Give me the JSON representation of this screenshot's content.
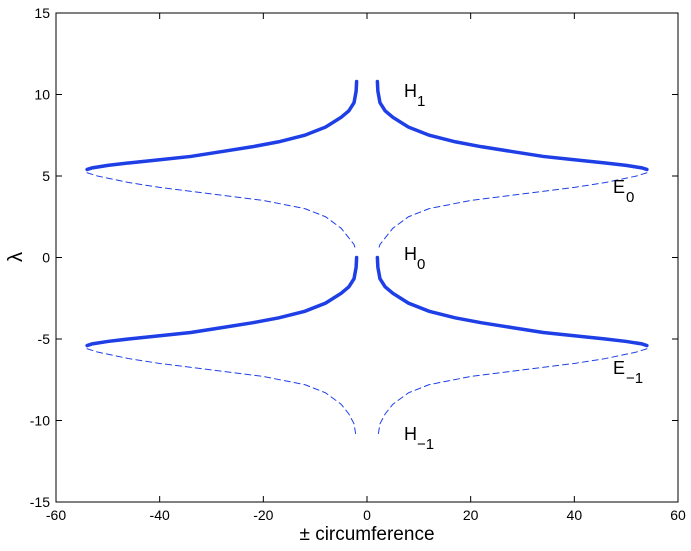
{
  "chart_data": {
    "type": "line",
    "xlabel": "± circumference",
    "ylabel": "λ",
    "xlim": [
      -60,
      60
    ],
    "ylim": [
      -15,
      15
    ],
    "xticks": [
      -60,
      -40,
      -20,
      0,
      20,
      40,
      60
    ],
    "yticks": [
      -15,
      -10,
      -5,
      0,
      5,
      10,
      15
    ],
    "color": "#1f3fe6",
    "annotations": [
      {
        "text": "H",
        "sub": "1"
      },
      {
        "text": "E",
        "sub": "0"
      },
      {
        "text": "H",
        "sub": "0"
      },
      {
        "text": "E",
        "sub": "−1"
      },
      {
        "text": "H",
        "sub": "−1"
      }
    ],
    "series": [
      {
        "style": "solid",
        "x": [
          2,
          2.1,
          2.5,
          3.5,
          5,
          8,
          12,
          17,
          22,
          28,
          34,
          40,
          46,
          50,
          53,
          54
        ],
        "y": [
          10.8,
          10.2,
          9.5,
          9,
          8.6,
          8,
          7.5,
          7.1,
          6.8,
          6.5,
          6.2,
          6,
          5.8,
          5.65,
          5.5,
          5.4
        ]
      },
      {
        "style": "solid",
        "x": [
          -2,
          -2.1,
          -2.5,
          -3.5,
          -5,
          -8,
          -12,
          -17,
          -22,
          -28,
          -34,
          -40,
          -46,
          -50,
          -53,
          -54
        ],
        "y": [
          10.8,
          10.2,
          9.5,
          9,
          8.6,
          8,
          7.5,
          7.1,
          6.8,
          6.5,
          6.2,
          6,
          5.8,
          5.65,
          5.5,
          5.4
        ]
      },
      {
        "style": "dashed",
        "x": [
          54,
          52,
          46,
          40,
          30,
          20,
          12,
          8,
          5,
          3.5,
          2.5,
          2.2
        ],
        "y": [
          5.2,
          5,
          4.6,
          4.3,
          3.9,
          3.5,
          3,
          2.5,
          1.8,
          1.2,
          0.8,
          0.5
        ]
      },
      {
        "style": "dashed",
        "x": [
          -54,
          -52,
          -46,
          -40,
          -30,
          -20,
          -12,
          -8,
          -5,
          -3.5,
          -2.5,
          -2.2
        ],
        "y": [
          5.2,
          5,
          4.6,
          4.3,
          3.9,
          3.5,
          3,
          2.5,
          1.8,
          1.2,
          0.8,
          0.5
        ]
      },
      {
        "style": "solid",
        "x": [
          2,
          2.1,
          2.5,
          3.5,
          5,
          8,
          12,
          17,
          22,
          28,
          34,
          40,
          46,
          50,
          53,
          54
        ],
        "y": [
          0,
          -0.6,
          -1.3,
          -1.8,
          -2.2,
          -2.8,
          -3.3,
          -3.7,
          -4,
          -4.3,
          -4.6,
          -4.8,
          -5,
          -5.15,
          -5.3,
          -5.4
        ]
      },
      {
        "style": "solid",
        "x": [
          -2,
          -2.1,
          -2.5,
          -3.5,
          -5,
          -8,
          -12,
          -17,
          -22,
          -28,
          -34,
          -40,
          -46,
          -50,
          -53,
          -54
        ],
        "y": [
          0,
          -0.6,
          -1.3,
          -1.8,
          -2.2,
          -2.8,
          -3.3,
          -3.7,
          -4,
          -4.3,
          -4.6,
          -4.8,
          -5,
          -5.15,
          -5.3,
          -5.4
        ]
      },
      {
        "style": "dashed",
        "x": [
          54,
          52,
          46,
          40,
          30,
          20,
          12,
          8,
          5,
          3.5,
          2.5,
          2.2
        ],
        "y": [
          -5.6,
          -5.8,
          -6.2,
          -6.5,
          -6.9,
          -7.3,
          -7.8,
          -8.3,
          -9,
          -9.6,
          -10.2,
          -10.8
        ]
      },
      {
        "style": "dashed",
        "x": [
          -54,
          -52,
          -46,
          -40,
          -30,
          -20,
          -12,
          -8,
          -5,
          -3.5,
          -2.5,
          -2.2
        ],
        "y": [
          -5.6,
          -5.8,
          -6.2,
          -6.5,
          -6.9,
          -7.3,
          -7.8,
          -8.3,
          -9,
          -9.6,
          -10.2,
          -10.8
        ]
      }
    ]
  }
}
